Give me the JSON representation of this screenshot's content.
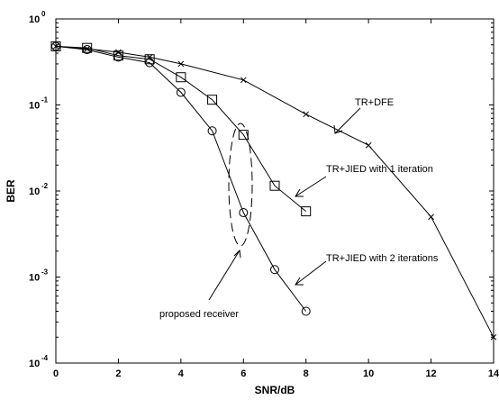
{
  "chart_data": {
    "type": "line",
    "xlabel": "SNR/dB",
    "ylabel": "BER",
    "xlim": [
      0,
      14
    ],
    "ylim": [
      0.0001,
      1
    ],
    "yscale": "log",
    "grid": false,
    "x_ticks": [
      "0",
      "2",
      "4",
      "6",
      "8",
      "10",
      "12",
      "14"
    ],
    "y_ticks": [
      {
        "base": "10",
        "exp": "0"
      },
      {
        "base": "10",
        "exp": "-1"
      },
      {
        "base": "10",
        "exp": "-2"
      },
      {
        "base": "10",
        "exp": "-3"
      },
      {
        "base": "10",
        "exp": "-4"
      }
    ],
    "series": [
      {
        "name": "TR+DFE",
        "marker": "x",
        "color": "#000000",
        "x": [
          0,
          1,
          2,
          3,
          4,
          6,
          8,
          10,
          12,
          14
        ],
        "y": [
          0.48,
          0.45,
          0.41,
          0.36,
          0.3,
          0.195,
          0.078,
          0.034,
          0.005,
          0.0002
        ]
      },
      {
        "name": "TR+JIED with 1 iteration",
        "marker": "square",
        "color": "#000000",
        "x": [
          0,
          1,
          2,
          3,
          4,
          5,
          6,
          7,
          8
        ],
        "y": [
          0.48,
          0.46,
          0.375,
          0.34,
          0.21,
          0.115,
          0.045,
          0.0115,
          0.0058
        ]
      },
      {
        "name": "TR+JIED with 2 iterations",
        "marker": "circle",
        "color": "#000000",
        "x": [
          0,
          1,
          2,
          3,
          4,
          5,
          6,
          7,
          8
        ],
        "y": [
          0.48,
          0.44,
          0.36,
          0.31,
          0.14,
          0.05,
          0.0056,
          0.00122,
          0.0004
        ]
      }
    ],
    "annotations": [
      "TR+DFE",
      "TR+JIED with 1 iteration",
      "TR+JIED with 2 iterations",
      "proposed receiver"
    ]
  }
}
